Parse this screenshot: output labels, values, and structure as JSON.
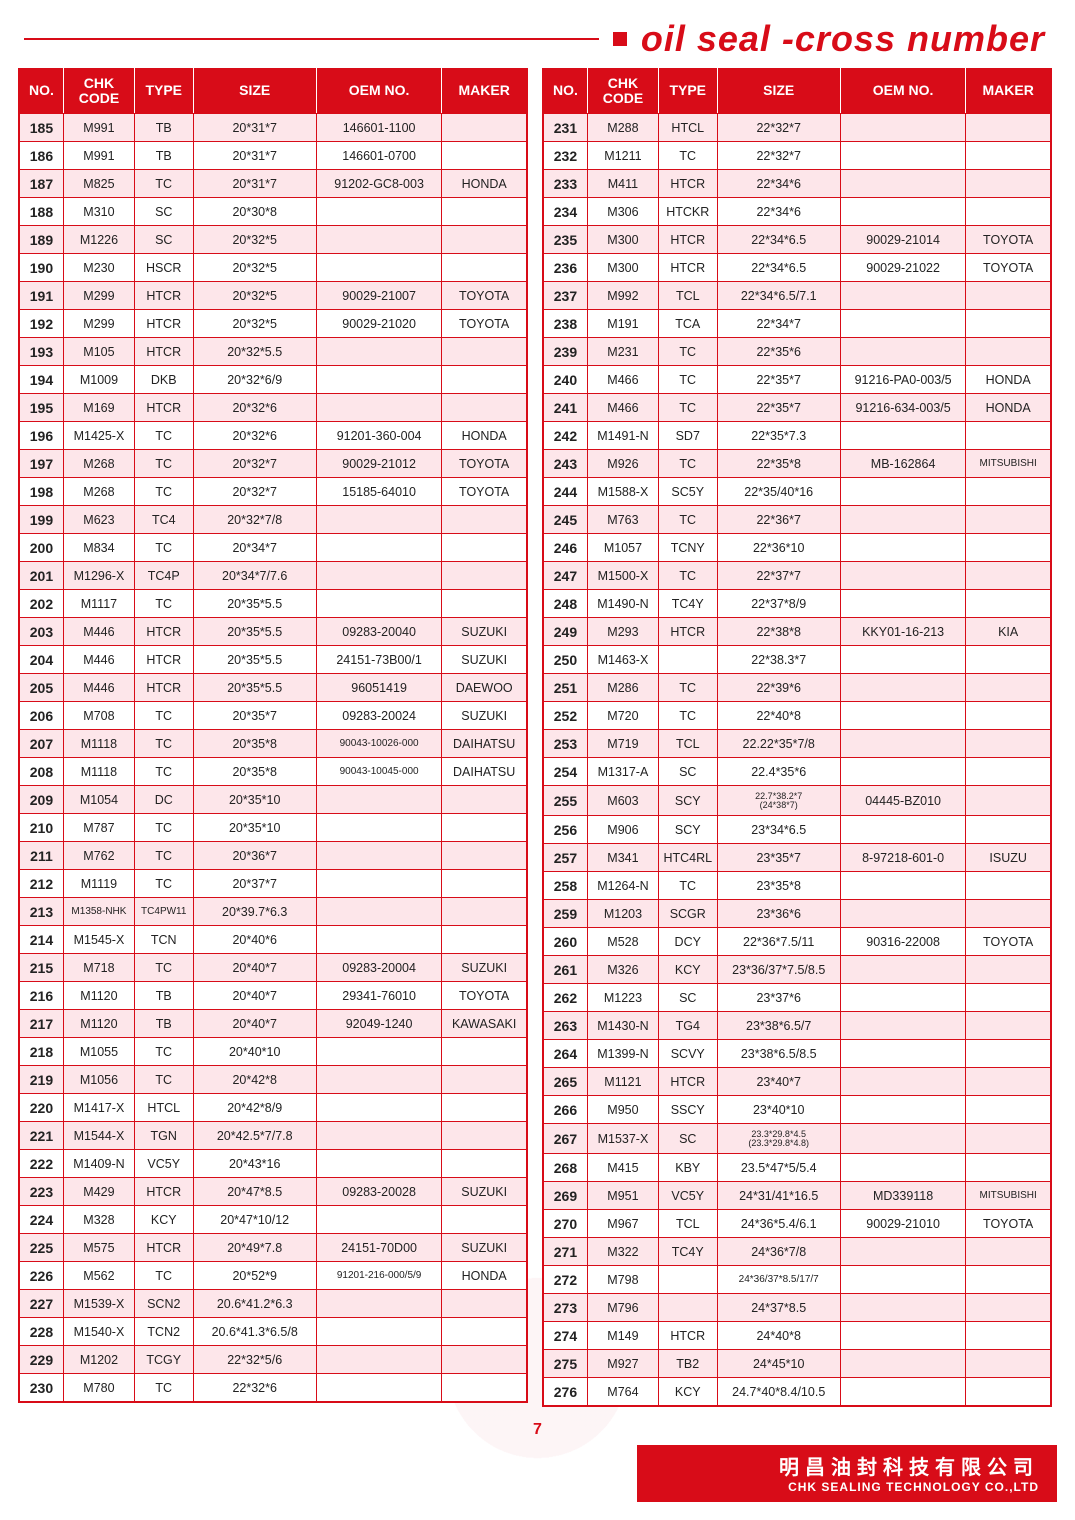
{
  "title": "oil seal -cross number",
  "page_number": "7",
  "footer": {
    "cn": "明昌油封科技有限公司",
    "en": "CHK SEALING TECHNOLOGY CO.,LTD"
  },
  "colors": {
    "brand_red": "#d80c18",
    "row_odd_bg": "#fde6ea",
    "row_even_bg": "#ffffff",
    "text": "#222222"
  },
  "columns": [
    "NO.",
    "CHK CODE",
    "TYPE",
    "SIZE",
    "OEM NO.",
    "MAKER"
  ],
  "left": [
    {
      "no": "185",
      "code": "M991",
      "type": "TB",
      "size": "20*31*7",
      "oem": "146601-1100",
      "maker": ""
    },
    {
      "no": "186",
      "code": "M991",
      "type": "TB",
      "size": "20*31*7",
      "oem": "146601-0700",
      "maker": ""
    },
    {
      "no": "187",
      "code": "M825",
      "type": "TC",
      "size": "20*31*7",
      "oem": "91202-GC8-003",
      "maker": "HONDA"
    },
    {
      "no": "188",
      "code": "M310",
      "type": "SC",
      "size": "20*30*8",
      "oem": "",
      "maker": ""
    },
    {
      "no": "189",
      "code": "M1226",
      "type": "SC",
      "size": "20*32*5",
      "oem": "",
      "maker": ""
    },
    {
      "no": "190",
      "code": "M230",
      "type": "HSCR",
      "size": "20*32*5",
      "oem": "",
      "maker": ""
    },
    {
      "no": "191",
      "code": "M299",
      "type": "HTCR",
      "size": "20*32*5",
      "oem": "90029-21007",
      "maker": "TOYOTA"
    },
    {
      "no": "192",
      "code": "M299",
      "type": "HTCR",
      "size": "20*32*5",
      "oem": "90029-21020",
      "maker": "TOYOTA"
    },
    {
      "no": "193",
      "code": "M105",
      "type": "HTCR",
      "size": "20*32*5.5",
      "oem": "",
      "maker": ""
    },
    {
      "no": "194",
      "code": "M1009",
      "type": "DKB",
      "size": "20*32*6/9",
      "oem": "",
      "maker": ""
    },
    {
      "no": "195",
      "code": "M169",
      "type": "HTCR",
      "size": "20*32*6",
      "oem": "",
      "maker": ""
    },
    {
      "no": "196",
      "code": "M1425-X",
      "type": "TC",
      "size": "20*32*6",
      "oem": "91201-360-004",
      "maker": "HONDA"
    },
    {
      "no": "197",
      "code": "M268",
      "type": "TC",
      "size": "20*32*7",
      "oem": "90029-21012",
      "maker": "TOYOTA"
    },
    {
      "no": "198",
      "code": "M268",
      "type": "TC",
      "size": "20*32*7",
      "oem": "15185-64010",
      "maker": "TOYOTA"
    },
    {
      "no": "199",
      "code": "M623",
      "type": "TC4",
      "size": "20*32*7/8",
      "oem": "",
      "maker": ""
    },
    {
      "no": "200",
      "code": "M834",
      "type": "TC",
      "size": "20*34*7",
      "oem": "",
      "maker": ""
    },
    {
      "no": "201",
      "code": "M1296-X",
      "type": "TC4P",
      "size": "20*34*7/7.6",
      "oem": "",
      "maker": ""
    },
    {
      "no": "202",
      "code": "M1117",
      "type": "TC",
      "size": "20*35*5.5",
      "oem": "",
      "maker": ""
    },
    {
      "no": "203",
      "code": "M446",
      "type": "HTCR",
      "size": "20*35*5.5",
      "oem": "09283-20040",
      "maker": "SUZUKI"
    },
    {
      "no": "204",
      "code": "M446",
      "type": "HTCR",
      "size": "20*35*5.5",
      "oem": "24151-73B00/1",
      "maker": "SUZUKI"
    },
    {
      "no": "205",
      "code": "M446",
      "type": "HTCR",
      "size": "20*35*5.5",
      "oem": "96051419",
      "maker": "DAEWOO"
    },
    {
      "no": "206",
      "code": "M708",
      "type": "TC",
      "size": "20*35*7",
      "oem": "09283-20024",
      "maker": "SUZUKI"
    },
    {
      "no": "207",
      "code": "M1118",
      "type": "TC",
      "size": "20*35*8",
      "oem": "90043-10026-000",
      "maker": "DAIHATSU",
      "oem_small": true
    },
    {
      "no": "208",
      "code": "M1118",
      "type": "TC",
      "size": "20*35*8",
      "oem": "90043-10045-000",
      "maker": "DAIHATSU",
      "oem_small": true
    },
    {
      "no": "209",
      "code": "M1054",
      "type": "DC",
      "size": "20*35*10",
      "oem": "",
      "maker": ""
    },
    {
      "no": "210",
      "code": "M787",
      "type": "TC",
      "size": "20*35*10",
      "oem": "",
      "maker": ""
    },
    {
      "no": "211",
      "code": "M762",
      "type": "TC",
      "size": "20*36*7",
      "oem": "",
      "maker": ""
    },
    {
      "no": "212",
      "code": "M1119",
      "type": "TC",
      "size": "20*37*7",
      "oem": "",
      "maker": ""
    },
    {
      "no": "213",
      "code": "M1358-NHK",
      "type": "TC4PW11",
      "size": "20*39.7*6.3",
      "oem": "",
      "maker": "",
      "code_small": true,
      "type_small": true
    },
    {
      "no": "214",
      "code": "M1545-X",
      "type": "TCN",
      "size": "20*40*6",
      "oem": "",
      "maker": ""
    },
    {
      "no": "215",
      "code": "M718",
      "type": "TC",
      "size": "20*40*7",
      "oem": "09283-20004",
      "maker": "SUZUKI"
    },
    {
      "no": "216",
      "code": "M1120",
      "type": "TB",
      "size": "20*40*7",
      "oem": "29341-76010",
      "maker": "TOYOTA"
    },
    {
      "no": "217",
      "code": "M1120",
      "type": "TB",
      "size": "20*40*7",
      "oem": "92049-1240",
      "maker": "KAWASAKI"
    },
    {
      "no": "218",
      "code": "M1055",
      "type": "TC",
      "size": "20*40*10",
      "oem": "",
      "maker": ""
    },
    {
      "no": "219",
      "code": "M1056",
      "type": "TC",
      "size": "20*42*8",
      "oem": "",
      "maker": ""
    },
    {
      "no": "220",
      "code": "M1417-X",
      "type": "HTCL",
      "size": "20*42*8/9",
      "oem": "",
      "maker": ""
    },
    {
      "no": "221",
      "code": "M1544-X",
      "type": "TGN",
      "size": "20*42.5*7/7.8",
      "oem": "",
      "maker": ""
    },
    {
      "no": "222",
      "code": "M1409-N",
      "type": "VC5Y",
      "size": "20*43*16",
      "oem": "",
      "maker": ""
    },
    {
      "no": "223",
      "code": "M429",
      "type": "HTCR",
      "size": "20*47*8.5",
      "oem": "09283-20028",
      "maker": "SUZUKI"
    },
    {
      "no": "224",
      "code": "M328",
      "type": "KCY",
      "size": "20*47*10/12",
      "oem": "",
      "maker": ""
    },
    {
      "no": "225",
      "code": "M575",
      "type": "HTCR",
      "size": "20*49*7.8",
      "oem": "24151-70D00",
      "maker": "SUZUKI"
    },
    {
      "no": "226",
      "code": "M562",
      "type": "TC",
      "size": "20*52*9",
      "oem": "91201-216-000/5/9",
      "maker": "HONDA",
      "oem_small": true
    },
    {
      "no": "227",
      "code": "M1539-X",
      "type": "SCN2",
      "size": "20.6*41.2*6.3",
      "oem": "",
      "maker": ""
    },
    {
      "no": "228",
      "code": "M1540-X",
      "type": "TCN2",
      "size": "20.6*41.3*6.5/8",
      "oem": "",
      "maker": ""
    },
    {
      "no": "229",
      "code": "M1202",
      "type": "TCGY",
      "size": "22*32*5/6",
      "oem": "",
      "maker": ""
    },
    {
      "no": "230",
      "code": "M780",
      "type": "TC",
      "size": "22*32*6",
      "oem": "",
      "maker": ""
    }
  ],
  "right": [
    {
      "no": "231",
      "code": "M288",
      "type": "HTCL",
      "size": "22*32*7",
      "oem": "",
      "maker": ""
    },
    {
      "no": "232",
      "code": "M1211",
      "type": "TC",
      "size": "22*32*7",
      "oem": "",
      "maker": ""
    },
    {
      "no": "233",
      "code": "M411",
      "type": "HTCR",
      "size": "22*34*6",
      "oem": "",
      "maker": ""
    },
    {
      "no": "234",
      "code": "M306",
      "type": "HTCKR",
      "size": "22*34*6",
      "oem": "",
      "maker": ""
    },
    {
      "no": "235",
      "code": "M300",
      "type": "HTCR",
      "size": "22*34*6.5",
      "oem": "90029-21014",
      "maker": "TOYOTA"
    },
    {
      "no": "236",
      "code": "M300",
      "type": "HTCR",
      "size": "22*34*6.5",
      "oem": "90029-21022",
      "maker": "TOYOTA"
    },
    {
      "no": "237",
      "code": "M992",
      "type": "TCL",
      "size": "22*34*6.5/7.1",
      "oem": "",
      "maker": ""
    },
    {
      "no": "238",
      "code": "M191",
      "type": "TCA",
      "size": "22*34*7",
      "oem": "",
      "maker": ""
    },
    {
      "no": "239",
      "code": "M231",
      "type": "TC",
      "size": "22*35*6",
      "oem": "",
      "maker": ""
    },
    {
      "no": "240",
      "code": "M466",
      "type": "TC",
      "size": "22*35*7",
      "oem": "91216-PA0-003/5",
      "maker": "HONDA"
    },
    {
      "no": "241",
      "code": "M466",
      "type": "TC",
      "size": "22*35*7",
      "oem": "91216-634-003/5",
      "maker": "HONDA"
    },
    {
      "no": "242",
      "code": "M1491-N",
      "type": "SD7",
      "size": "22*35*7.3",
      "oem": "",
      "maker": ""
    },
    {
      "no": "243",
      "code": "M926",
      "type": "TC",
      "size": "22*35*8",
      "oem": "MB-162864",
      "maker": "MITSUBISHI",
      "maker_small": true
    },
    {
      "no": "244",
      "code": "M1588-X",
      "type": "SC5Y",
      "size": "22*35/40*16",
      "oem": "",
      "maker": ""
    },
    {
      "no": "245",
      "code": "M763",
      "type": "TC",
      "size": "22*36*7",
      "oem": "",
      "maker": ""
    },
    {
      "no": "246",
      "code": "M1057",
      "type": "TCNY",
      "size": "22*36*10",
      "oem": "",
      "maker": ""
    },
    {
      "no": "247",
      "code": "M1500-X",
      "type": "TC",
      "size": "22*37*7",
      "oem": "",
      "maker": ""
    },
    {
      "no": "248",
      "code": "M1490-N",
      "type": "TC4Y",
      "size": "22*37*8/9",
      "oem": "",
      "maker": ""
    },
    {
      "no": "249",
      "code": "M293",
      "type": "HTCR",
      "size": "22*38*8",
      "oem": "KKY01-16-213",
      "maker": "KIA"
    },
    {
      "no": "250",
      "code": "M1463-X",
      "type": "",
      "size": "22*38.3*7",
      "oem": "",
      "maker": ""
    },
    {
      "no": "251",
      "code": "M286",
      "type": "TC",
      "size": "22*39*6",
      "oem": "",
      "maker": ""
    },
    {
      "no": "252",
      "code": "M720",
      "type": "TC",
      "size": "22*40*8",
      "oem": "",
      "maker": ""
    },
    {
      "no": "253",
      "code": "M719",
      "type": "TCL",
      "size": "22.22*35*7/8",
      "oem": "",
      "maker": ""
    },
    {
      "no": "254",
      "code": "M1317-A",
      "type": "SC",
      "size": "22.4*35*6",
      "oem": "",
      "maker": ""
    },
    {
      "no": "255",
      "code": "M603",
      "type": "SCY",
      "size": "22.7*38.2*7\n(24*38*7)",
      "oem": "04445-BZ010",
      "maker": "",
      "size_tiny": true
    },
    {
      "no": "256",
      "code": "M906",
      "type": "SCY",
      "size": "23*34*6.5",
      "oem": "",
      "maker": ""
    },
    {
      "no": "257",
      "code": "M341",
      "type": "HTC4RL",
      "size": "23*35*7",
      "oem": "8-97218-601-0",
      "maker": "ISUZU"
    },
    {
      "no": "258",
      "code": "M1264-N",
      "type": "TC",
      "size": "23*35*8",
      "oem": "",
      "maker": ""
    },
    {
      "no": "259",
      "code": "M1203",
      "type": "SCGR",
      "size": "23*36*6",
      "oem": "",
      "maker": ""
    },
    {
      "no": "260",
      "code": "M528",
      "type": "DCY",
      "size": "22*36*7.5/11",
      "oem": "90316-22008",
      "maker": "TOYOTA"
    },
    {
      "no": "261",
      "code": "M326",
      "type": "KCY",
      "size": "23*36/37*7.5/8.5",
      "oem": "",
      "maker": ""
    },
    {
      "no": "262",
      "code": "M1223",
      "type": "SC",
      "size": "23*37*6",
      "oem": "",
      "maker": ""
    },
    {
      "no": "263",
      "code": "M1430-N",
      "type": "TG4",
      "size": "23*38*6.5/7",
      "oem": "",
      "maker": ""
    },
    {
      "no": "264",
      "code": "M1399-N",
      "type": "SCVY",
      "size": "23*38*6.5/8.5",
      "oem": "",
      "maker": ""
    },
    {
      "no": "265",
      "code": "M1121",
      "type": "HTCR",
      "size": "23*40*7",
      "oem": "",
      "maker": ""
    },
    {
      "no": "266",
      "code": "M950",
      "type": "SSCY",
      "size": "23*40*10",
      "oem": "",
      "maker": ""
    },
    {
      "no": "267",
      "code": "M1537-X",
      "type": "SC",
      "size": "23.3*29.8*4.5\n(23.3*29.8*4.8)",
      "oem": "",
      "maker": "",
      "size_tiny": true
    },
    {
      "no": "268",
      "code": "M415",
      "type": "KBY",
      "size": "23.5*47*5/5.4",
      "oem": "",
      "maker": ""
    },
    {
      "no": "269",
      "code": "M951",
      "type": "VC5Y",
      "size": "24*31/41*16.5",
      "oem": "MD339118",
      "maker": "MITSUBISHI",
      "maker_small": true
    },
    {
      "no": "270",
      "code": "M967",
      "type": "TCL",
      "size": "24*36*5.4/6.1",
      "oem": "90029-21010",
      "maker": "TOYOTA"
    },
    {
      "no": "271",
      "code": "M322",
      "type": "TC4Y",
      "size": "24*36*7/8",
      "oem": "",
      "maker": ""
    },
    {
      "no": "272",
      "code": "M798",
      "type": "",
      "size": "24*36/37*8.5/17/7",
      "oem": "",
      "maker": "",
      "size_small": true
    },
    {
      "no": "273",
      "code": "M796",
      "type": "",
      "size": "24*37*8.5",
      "oem": "",
      "maker": ""
    },
    {
      "no": "274",
      "code": "M149",
      "type": "HTCR",
      "size": "24*40*8",
      "oem": "",
      "maker": ""
    },
    {
      "no": "275",
      "code": "M927",
      "type": "TB2",
      "size": "24*45*10",
      "oem": "",
      "maker": ""
    },
    {
      "no": "276",
      "code": "M764",
      "type": "KCY",
      "size": "24.7*40*8.4/10.5",
      "oem": "",
      "maker": ""
    }
  ]
}
